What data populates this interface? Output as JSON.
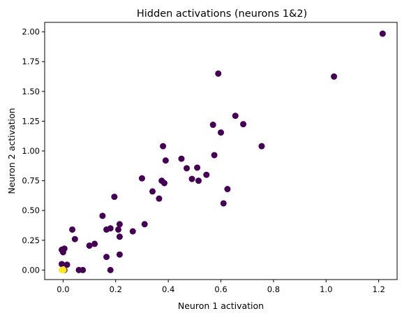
{
  "chart_data": {
    "type": "scatter",
    "title": "Hidden activations (neurons 1&2)",
    "xlabel": "Neuron 1 activation",
    "ylabel": "Neuron 2 activation",
    "xlim": [
      -0.07,
      1.27
    ],
    "ylim": [
      -0.08,
      2.08
    ],
    "xticks": [
      0.0,
      0.2,
      0.4,
      0.6,
      0.8,
      1.0,
      1.2
    ],
    "xtick_labels": [
      "0.0",
      "0.2",
      "0.4",
      "0.6",
      "0.8",
      "1.0",
      "1.2"
    ],
    "yticks": [
      0.0,
      0.25,
      0.5,
      0.75,
      1.0,
      1.25,
      1.5,
      1.75,
      2.0
    ],
    "ytick_labels": [
      "0.00",
      "0.25",
      "0.50",
      "0.75",
      "1.00",
      "1.25",
      "1.50",
      "1.75",
      "2.00"
    ],
    "grid": false,
    "colors": {
      "class_0": "#440154",
      "class_1": "#fde725"
    },
    "series": [
      {
        "color": "#440154",
        "points": [
          [
            1.215,
            1.985
          ],
          [
            1.03,
            1.625
          ],
          [
            0.59,
            1.65
          ],
          [
            0.655,
            1.295
          ],
          [
            0.57,
            1.22
          ],
          [
            0.6,
            1.155
          ],
          [
            0.685,
            1.225
          ],
          [
            0.755,
            1.04
          ],
          [
            0.38,
            1.04
          ],
          [
            0.575,
            0.965
          ],
          [
            0.45,
            0.935
          ],
          [
            0.39,
            0.92
          ],
          [
            0.47,
            0.855
          ],
          [
            0.51,
            0.86
          ],
          [
            0.545,
            0.8
          ],
          [
            0.3,
            0.77
          ],
          [
            0.49,
            0.765
          ],
          [
            0.515,
            0.75
          ],
          [
            0.375,
            0.75
          ],
          [
            0.385,
            0.73
          ],
          [
            0.625,
            0.68
          ],
          [
            0.34,
            0.66
          ],
          [
            0.195,
            0.615
          ],
          [
            0.365,
            0.6
          ],
          [
            0.61,
            0.56
          ],
          [
            0.15,
            0.455
          ],
          [
            0.31,
            0.385
          ],
          [
            0.215,
            0.385
          ],
          [
            0.165,
            0.34
          ],
          [
            0.18,
            0.35
          ],
          [
            0.21,
            0.34
          ],
          [
            0.035,
            0.34
          ],
          [
            0.265,
            0.325
          ],
          [
            0.215,
            0.28
          ],
          [
            0.045,
            0.26
          ],
          [
            0.12,
            0.22
          ],
          [
            0.1,
            0.205
          ],
          [
            0.005,
            0.18
          ],
          [
            -0.005,
            0.17
          ],
          [
            0.0,
            0.15
          ],
          [
            0.215,
            0.13
          ],
          [
            0.165,
            0.11
          ],
          [
            -0.005,
            0.05
          ],
          [
            0.015,
            0.045
          ],
          [
            0.06,
            0.0
          ],
          [
            0.075,
            0.0
          ],
          [
            0.18,
            0.0
          ],
          [
            0.005,
            0.0
          ]
        ]
      },
      {
        "color": "#fde725",
        "points": [
          [
            -0.005,
            0.0
          ],
          [
            0.0,
            0.005
          ],
          [
            0.002,
            0.0
          ]
        ]
      }
    ]
  }
}
